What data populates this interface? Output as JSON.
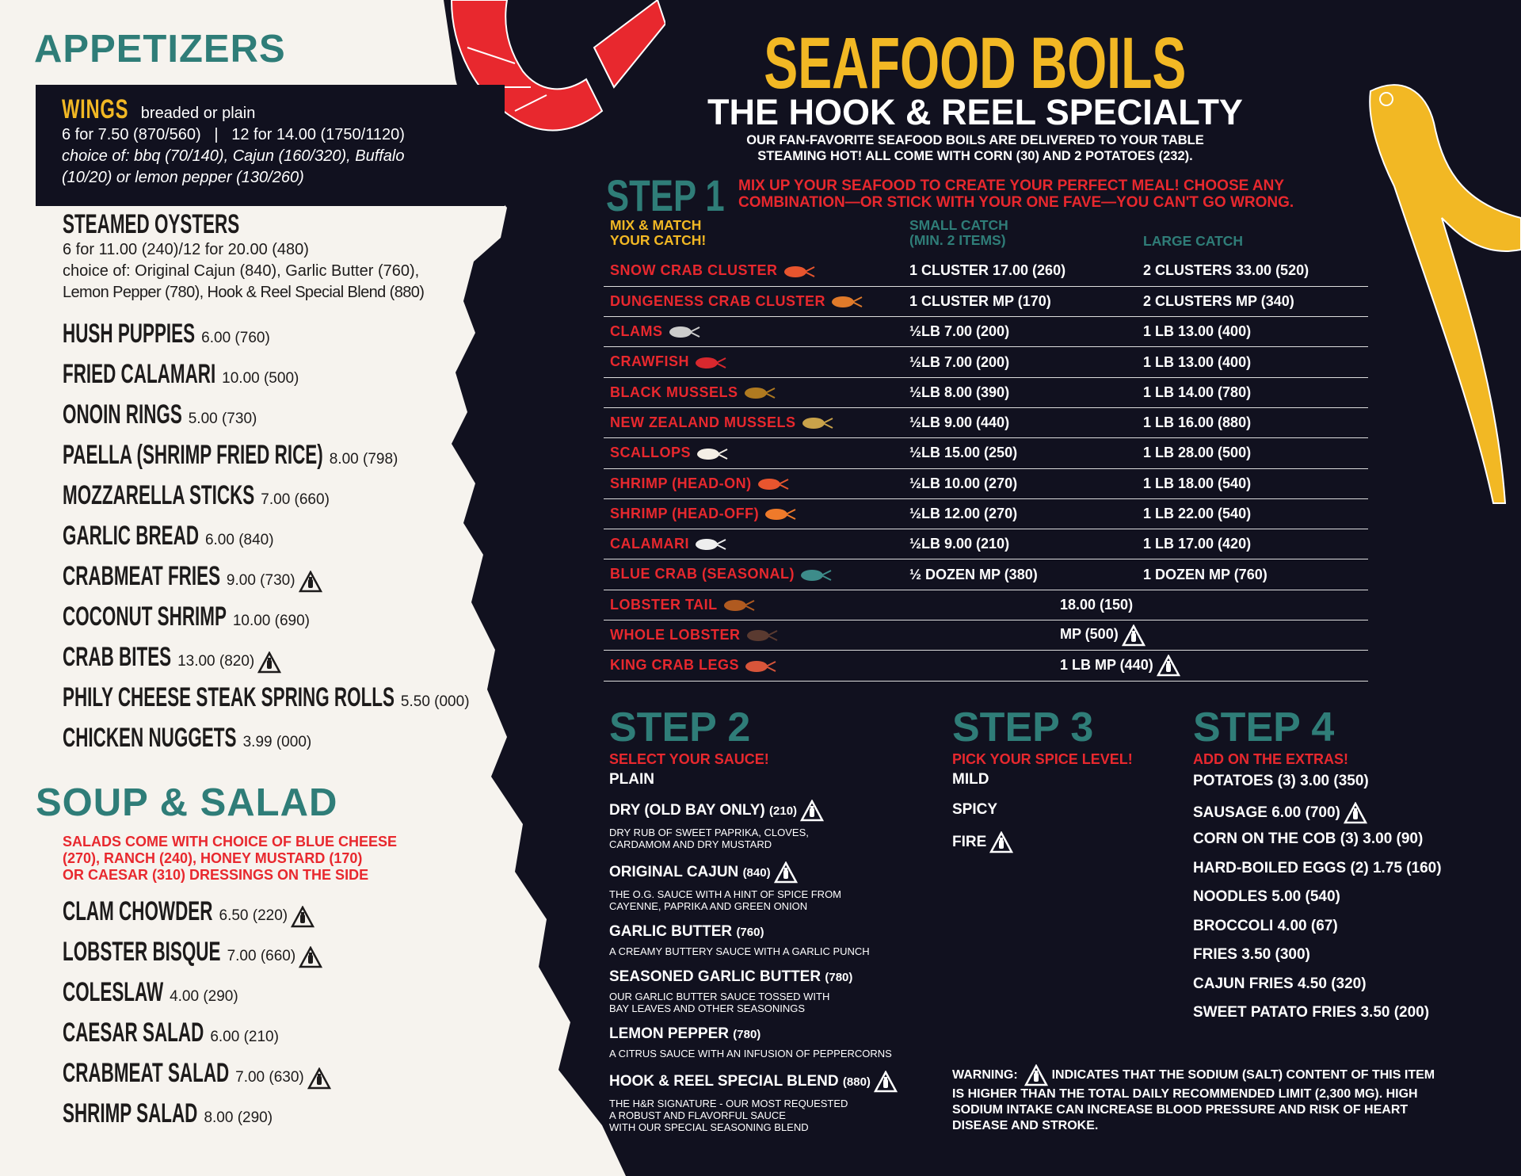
{
  "appetizers": {
    "title": "APPETIZERS",
    "wings": {
      "name": "WINGS",
      "style": "breaded or plain",
      "prices": "6 for 7.50 (870/560)   |   12 for 14.00 (1750/1120)",
      "choice": "choice of: bbq (70/140), Cajun (160/320), Buffalo",
      "choice2": "(10/20) or lemon pepper (130/260)"
    },
    "oysters": {
      "name": "STEAMED OYSTERS",
      "prices": "6 for 11.00 (240)/12 for 20.00 (480)",
      "choice": "choice of: Original Cajun (840), Garlic Butter (760),",
      "choice2": "Lemon Pepper (780), Hook & Reel Special Blend (880)"
    },
    "items": [
      {
        "name": "HUSH PUPPIES",
        "price": "6.00 (760)",
        "salt": false
      },
      {
        "name": "FRIED CALAMARI",
        "price": "10.00 (500)",
        "salt": false
      },
      {
        "name": "ONOIN RINGS",
        "price": "5.00 (730)",
        "salt": false
      },
      {
        "name": "PAELLA (SHRIMP FRIED RICE)",
        "price": "8.00 (798)",
        "salt": false
      },
      {
        "name": "MOZZARELLA STICKS",
        "price": "7.00 (660)",
        "salt": false
      },
      {
        "name": "GARLIC BREAD",
        "price": "6.00 (840)",
        "salt": false
      },
      {
        "name": "CRABMEAT FRIES",
        "price": "9.00 (730)",
        "salt": true
      },
      {
        "name": "COCONUT SHRIMP",
        "price": "10.00 (690)",
        "salt": false
      },
      {
        "name": "CRAB BITES",
        "price": "13.00 (820)",
        "salt": true
      },
      {
        "name": "PHILY CHEESE STEAK SPRING ROLLS",
        "price": "5.50 (000)",
        "salt": false
      },
      {
        "name": "CHICKEN NUGGETS",
        "price": "3.99 (000)",
        "salt": false
      }
    ]
  },
  "soup_salad": {
    "title": "SOUP & SALAD",
    "note": [
      "SALADS COME WITH CHOICE OF BLUE CHEESE",
      "(270), RANCH (240), HONEY MUSTARD (170)",
      "OR CAESAR (310) DRESSINGS ON THE SIDE"
    ],
    "items": [
      {
        "name": "CLAM CHOWDER",
        "price": "6.50 (220)",
        "salt": true
      },
      {
        "name": "LOBSTER BISQUE",
        "price": "7.00 (660)",
        "salt": true
      },
      {
        "name": "COLESLAW",
        "price": "4.00 (290)",
        "salt": false
      },
      {
        "name": "CAESAR SALAD",
        "price": "6.00 (210)",
        "salt": false
      },
      {
        "name": "CRABMEAT SALAD",
        "price": "7.00 (630)",
        "salt": true
      },
      {
        "name": "SHRIMP SALAD",
        "price": "8.00 (290)",
        "salt": false
      }
    ]
  },
  "boils": {
    "title": "SEAFOOD BOILS",
    "subtitle": "THE HOOK & REEL SPECIALTY",
    "intro": [
      "OUR FAN-FAVORITE SEAFOOD BOILS ARE DELIVERED TO YOUR TABLE",
      "STEAMING HOT! ALL COME WITH CORN (30) AND 2 POTATOES (232)."
    ]
  },
  "step1": {
    "label": "STEP 1",
    "text": [
      "MIX UP YOUR SEAFOOD TO CREATE YOUR PERFECT MEAL! CHOOSE ANY",
      "COMBINATION—OR STICK WITH YOUR ONE FAVE—YOU CAN'T GO WRONG."
    ],
    "headers": {
      "col1": [
        "MIX & MATCH",
        "YOUR CATCH!"
      ],
      "col2": [
        "SMALL CATCH",
        "(MIN. 2 ITEMS)"
      ],
      "col3": "LARGE CATCH"
    },
    "rows": [
      {
        "name": "SNOW CRAB CLUSTER",
        "icon": "snow-crab-icon",
        "small": "1 CLUSTER 17.00 (260)",
        "large": "2 CLUSTERS 33.00 (520)"
      },
      {
        "name": "DUNGENESS CRAB CLUSTER",
        "icon": "dungeness-crab-icon",
        "small": "1 CLUSTER MP (170)",
        "large": "2 CLUSTERS MP (340)"
      },
      {
        "name": "CLAMS",
        "icon": "clam-icon",
        "small": "½LB 7.00 (200)",
        "large": "1 LB 13.00 (400)"
      },
      {
        "name": "CRAWFISH",
        "icon": "crawfish-icon",
        "small": "½LB 7.00 (200)",
        "large": "1 LB 13.00 (400)"
      },
      {
        "name": "BLACK MUSSELS",
        "icon": "mussel-icon",
        "small": "½LB 8.00 (390)",
        "large": "1 LB 14.00 (780)"
      },
      {
        "name": "NEW ZEALAND MUSSELS",
        "icon": "green-mussel-icon",
        "small": "½LB 9.00 (440)",
        "large": "1 LB 16.00 (880)"
      },
      {
        "name": "SCALLOPS",
        "icon": "scallop-icon",
        "small": "½LB 15.00 (250)",
        "large": "1 LB 28.00 (500)"
      },
      {
        "name": "SHRIMP (HEAD-ON)",
        "icon": "shrimp-head-on-icon",
        "small": "½LB 10.00 (270)",
        "large": "1 LB 18.00 (540)"
      },
      {
        "name": "SHRIMP (HEAD-OFF)",
        "icon": "shrimp-head-off-icon",
        "small": "½LB 12.00 (270)",
        "large": "1 LB 22.00 (540)"
      },
      {
        "name": "CALAMARI",
        "icon": "calamari-icon",
        "small": "½LB 9.00 (210)",
        "large": "1 LB 17.00 (420)"
      },
      {
        "name": "BLUE CRAB (SEASONAL)",
        "icon": "blue-crab-icon",
        "small": "½ DOZEN MP (380)",
        "large": "1 DOZEN MP (760)"
      },
      {
        "name": "LOBSTER TAIL",
        "icon": "lobster-tail-icon",
        "single": "18.00 (150)",
        "salt": false
      },
      {
        "name": "WHOLE LOBSTER",
        "icon": "lobster-icon",
        "single": "MP (500)",
        "salt": true
      },
      {
        "name": "KING CRAB LEGS",
        "icon": "king-crab-legs-icon",
        "single": "1 LB MP (440)",
        "salt": true
      }
    ]
  },
  "step2": {
    "label": "STEP 2",
    "sub": "SELECT YOUR SAUCE!",
    "plain": "PLAIN",
    "sauces": [
      {
        "name": "DRY (OLD BAY ONLY)",
        "cal": "(210)",
        "salt": true,
        "desc": [
          "DRY RUB OF SWEET PAPRIKA, CLOVES,",
          "CARDAMOM AND DRY MUSTARD"
        ]
      },
      {
        "name": "ORIGINAL CAJUN",
        "cal": "(840)",
        "salt": true,
        "desc": [
          "THE O.G. SAUCE WITH A HINT OF SPICE FROM",
          "CAYENNE, PAPRIKA AND GREEN ONION"
        ]
      },
      {
        "name": "GARLIC BUTTER",
        "cal": "(760)",
        "salt": false,
        "desc": [
          "A CREAMY BUTTERY SAUCE WITH A GARLIC PUNCH"
        ]
      },
      {
        "name": "SEASONED GARLIC BUTTER",
        "cal": "(780)",
        "salt": false,
        "desc": [
          "OUR GARLIC BUTTER SAUCE TOSSED WITH",
          "BAY LEAVES AND OTHER SEASONINGS"
        ]
      },
      {
        "name": "LEMON PEPPER",
        "cal": "(780)",
        "salt": false,
        "desc": [
          "A CITRUS SAUCE WITH AN INFUSION OF PEPPERCORNS"
        ]
      },
      {
        "name": "HOOK & REEL SPECIAL BLEND",
        "cal": "(880)",
        "salt": true,
        "desc": [
          "THE H&R SIGNATURE - OUR MOST REQUESTED",
          "A ROBUST AND FLAVORFUL SAUCE",
          "WITH OUR SPECIAL SEASONING BLEND"
        ]
      }
    ]
  },
  "step3": {
    "label": "STEP 3",
    "sub": "PICK YOUR SPICE LEVEL!",
    "levels": [
      {
        "name": "MILD",
        "salt": false
      },
      {
        "name": "SPICY",
        "salt": false
      },
      {
        "name": "FIRE",
        "salt": true
      }
    ]
  },
  "step4": {
    "label": "STEP 4",
    "sub": "ADD ON THE EXTRAS!",
    "extras": [
      {
        "name": "POTATOES (3) 3.00 (350)",
        "salt": false
      },
      {
        "name": "SAUSAGE 6.00 (700)",
        "salt": true
      },
      {
        "name": "CORN ON THE COB (3) 3.00 (90)",
        "salt": false
      },
      {
        "name": "HARD-BOILED EGGS (2) 1.75 (160)",
        "salt": false
      },
      {
        "name": "NOODLES 5.00 (540)",
        "salt": false
      },
      {
        "name": "BROCCOLI 4.00 (67)",
        "salt": false
      },
      {
        "name": "FRIES 3.50 (300)",
        "salt": false
      },
      {
        "name": "CAJUN FRIES 4.50 (320)",
        "salt": false
      },
      {
        "name": "SWEET PATATO FRIES 3.50 (200)",
        "salt": false
      }
    ]
  },
  "warning": {
    "label": "WARNING:",
    "text": "INDICATES THAT THE SODIUM (SALT) CONTENT OF THIS ITEM",
    "lines": [
      "IS HIGHER THAN THE TOTAL DAILY RECOMMENDED LIMIT (2,300 MG). HIGH",
      "SODIUM INTAKE CAN INCREASE BLOOD PRESSURE AND RISK OF HEART",
      "DISEASE AND STROKE."
    ]
  },
  "colors": {
    "background": "#11111f",
    "cream": "#f6f3ee",
    "teal": "#2f7d78",
    "gold": "#f2b824",
    "red": "#e8282e"
  }
}
